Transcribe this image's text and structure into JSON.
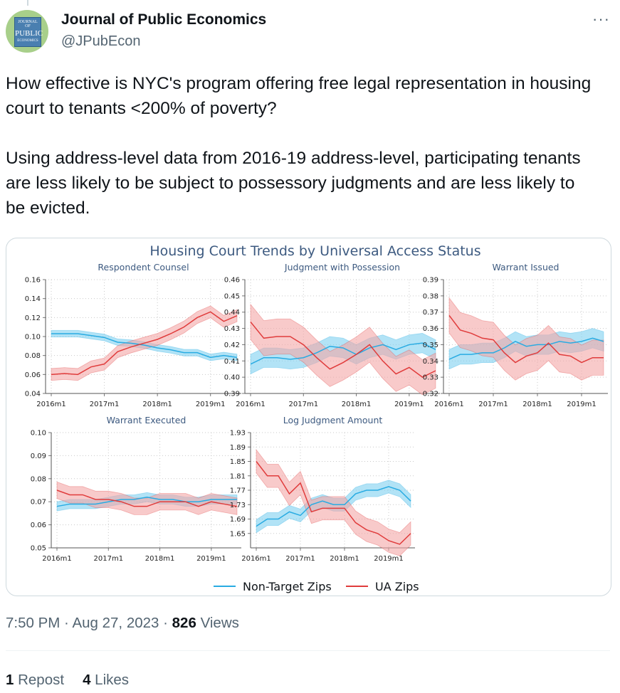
{
  "tweet": {
    "author_name": "Journal of Public Economics",
    "author_handle": "@JPubEcon",
    "more_icon": "···",
    "avatar_text": [
      "JOURNAL OF",
      "PUBLIC",
      "ECONOMICS"
    ],
    "text_p1": "How effective is NYC's program offering free legal representation in housing court to tenants <200% of poverty?",
    "text_p2": "Using address-level data from 2016-19 address-level, participating tenants are less likely to be subject to possessory judgments and are less likely to be evicted.",
    "time": "7:50 PM",
    "sep1": " · ",
    "date": "Aug 27, 2023",
    "sep2": " · ",
    "views_count": "826",
    "views_label": " Views",
    "reposts_count": "1",
    "reposts_label": " Repost",
    "likes_count": "4",
    "likes_label": " Likes"
  },
  "figure": {
    "title": "Housing Court Trends by Universal Access Status",
    "legend": [
      {
        "name": "Non-Target Zips",
        "color": "#29abe2"
      },
      {
        "name": "UA Zips",
        "color": "#e03c3c"
      }
    ],
    "colors": {
      "blue": "#29abe2",
      "red": "#e03c3c",
      "blue_band": "#7fd0f0",
      "red_band": "#f4a6a6",
      "title": "#3d5a80"
    }
  },
  "chart_data": [
    {
      "type": "line",
      "title": "Respondent Counsel",
      "x_ticks": [
        "2016m1",
        "2017m1",
        "2018m1",
        "2019m1"
      ],
      "x": [
        0,
        3,
        6,
        9,
        12,
        15,
        18,
        21,
        24,
        27,
        30,
        33,
        36,
        39,
        42
      ],
      "ylim": [
        0.04,
        0.16
      ],
      "y_ticks": [
        "0.04",
        "0.06",
        "0.08",
        "0.10",
        "0.12",
        "0.14",
        "0.16"
      ],
      "series": [
        {
          "name": "Non-Target Zips",
          "values": [
            0.103,
            0.103,
            0.103,
            0.101,
            0.099,
            0.094,
            0.093,
            0.091,
            0.088,
            0.086,
            0.083,
            0.083,
            0.078,
            0.08,
            0.078
          ]
        },
        {
          "name": "UA Zips",
          "values": [
            0.06,
            0.061,
            0.06,
            0.068,
            0.071,
            0.084,
            0.089,
            0.093,
            0.097,
            0.103,
            0.11,
            0.12,
            0.126,
            0.116,
            0.122
          ]
        }
      ]
    },
    {
      "type": "line",
      "title": "Judgment with Possession",
      "x_ticks": [
        "2016m1",
        "2017m1",
        "2018m1",
        "2019m1"
      ],
      "x": [
        0,
        3,
        6,
        9,
        12,
        15,
        18,
        21,
        24,
        27,
        30,
        33,
        36,
        39,
        42
      ],
      "ylim": [
        0.39,
        0.46
      ],
      "y_ticks": [
        "0.39",
        "0.40",
        "0.41",
        "0.42",
        "0.43",
        "0.44",
        "0.45",
        "0.46"
      ],
      "series": [
        {
          "name": "Non-Target Zips",
          "values": [
            0.408,
            0.412,
            0.412,
            0.411,
            0.412,
            0.415,
            0.419,
            0.418,
            0.414,
            0.418,
            0.42,
            0.417,
            0.42,
            0.421,
            0.417
          ]
        },
        {
          "name": "UA Zips",
          "values": [
            0.434,
            0.424,
            0.425,
            0.425,
            0.42,
            0.412,
            0.405,
            0.409,
            0.414,
            0.42,
            0.41,
            0.402,
            0.406,
            0.4,
            0.404
          ]
        }
      ]
    },
    {
      "type": "line",
      "title": "Warrant Issued",
      "x_ticks": [
        "2016m1",
        "2017m1",
        "2018m1",
        "2019m1"
      ],
      "x": [
        0,
        3,
        6,
        9,
        12,
        15,
        18,
        21,
        24,
        27,
        30,
        33,
        36,
        39,
        42
      ],
      "ylim": [
        0.32,
        0.39
      ],
      "y_ticks": [
        "0.32",
        "0.33",
        "0.34",
        "0.35",
        "0.36",
        "0.37",
        "0.38",
        "0.39"
      ],
      "series": [
        {
          "name": "Non-Target Zips",
          "values": [
            0.341,
            0.344,
            0.344,
            0.345,
            0.345,
            0.348,
            0.352,
            0.349,
            0.35,
            0.35,
            0.352,
            0.351,
            0.352,
            0.354,
            0.352
          ]
        },
        {
          "name": "UA Zips",
          "values": [
            0.368,
            0.359,
            0.357,
            0.354,
            0.353,
            0.345,
            0.339,
            0.343,
            0.345,
            0.351,
            0.344,
            0.343,
            0.339,
            0.342,
            0.342
          ]
        }
      ]
    },
    {
      "type": "line",
      "title": "Warrant Executed",
      "x_ticks": [
        "2016m1",
        "2017m1",
        "2018m1",
        "2019m1"
      ],
      "x": [
        0,
        3,
        6,
        9,
        12,
        15,
        18,
        21,
        24,
        27,
        30,
        33,
        36,
        39,
        42
      ],
      "ylim": [
        0.05,
        0.1
      ],
      "y_ticks": [
        "0.05",
        "0.06",
        "0.07",
        "0.08",
        "0.09",
        "0.10"
      ],
      "series": [
        {
          "name": "Non-Target Zips",
          "values": [
            0.068,
            0.069,
            0.069,
            0.069,
            0.07,
            0.071,
            0.071,
            0.072,
            0.071,
            0.071,
            0.07,
            0.07,
            0.071,
            0.071,
            0.071
          ]
        },
        {
          "name": "UA Zips",
          "values": [
            0.075,
            0.073,
            0.073,
            0.071,
            0.071,
            0.07,
            0.068,
            0.068,
            0.07,
            0.07,
            0.07,
            0.068,
            0.07,
            0.069,
            0.068
          ]
        }
      ]
    },
    {
      "type": "line",
      "title": "Log Judgment Amount",
      "x_ticks": [
        "2016m1",
        "2017m1",
        "2018m1",
        "2019m1"
      ],
      "x": [
        0,
        3,
        6,
        9,
        12,
        15,
        18,
        21,
        24,
        27,
        30,
        33,
        36,
        39,
        42
      ],
      "ylim": [
        1.61,
        1.93
      ],
      "y_ticks": [
        "1.65",
        "1.69",
        "1.73",
        "1.77",
        "1.81",
        "1.85",
        "1.89",
        "1.93"
      ],
      "series": [
        {
          "name": "Non-Target Zips",
          "values": [
            1.67,
            1.69,
            1.69,
            1.71,
            1.7,
            1.73,
            1.74,
            1.73,
            1.73,
            1.76,
            1.77,
            1.77,
            1.78,
            1.77,
            1.74
          ]
        },
        {
          "name": "UA Zips",
          "values": [
            1.85,
            1.81,
            1.81,
            1.76,
            1.79,
            1.71,
            1.72,
            1.72,
            1.72,
            1.68,
            1.66,
            1.65,
            1.63,
            1.62,
            1.65
          ]
        }
      ]
    }
  ]
}
